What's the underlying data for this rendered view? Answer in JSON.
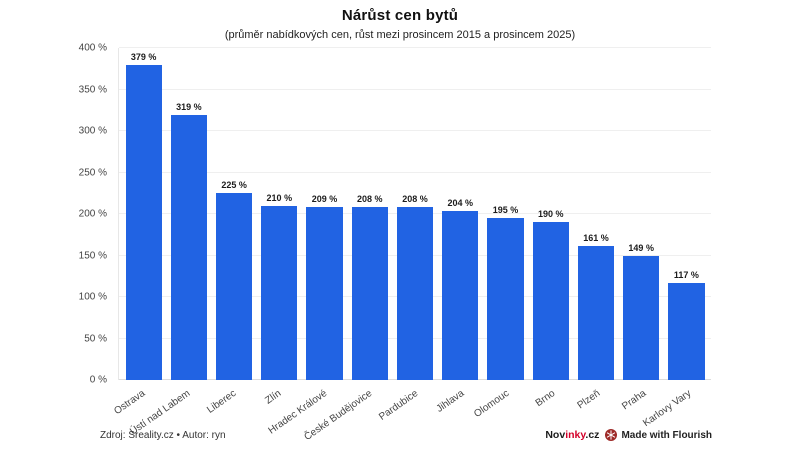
{
  "header": {
    "title": "Nárůst cen bytů",
    "subtitle": "(průměr nabídkových cen, růst mezi prosincem 2015 a prosincem 2025)"
  },
  "chart_data": {
    "type": "bar",
    "title": "Nárůst cen bytů",
    "subtitle": "(průměr nabídkových cen, růst mezi prosincem 2015 a prosincem 2025)",
    "categories": [
      "Ostrava",
      "Ústí nad Labem",
      "Liberec",
      "Zlín",
      "Hradec Králové",
      "České Budějovice",
      "Pardubice",
      "Jihlava",
      "Olomouc",
      "Brno",
      "Plzeň",
      "Praha",
      "Karlovy Vary"
    ],
    "values": [
      379,
      319,
      225,
      210,
      209,
      208,
      208,
      204,
      195,
      190,
      161,
      149,
      117
    ],
    "value_suffix": " %",
    "xlabel": "",
    "ylabel": "",
    "ylim": [
      0,
      400
    ],
    "ytick_step": 50,
    "grid": "horizontal",
    "legend": "none",
    "bar_color": "#2163e3",
    "label_rotation": -35
  },
  "footer": {
    "source": "Zdroj: Sreality.cz • Autor: ryn",
    "brand": {
      "prefix": "Nov",
      "highlight": "inky",
      "suffix": ".cz",
      "highlight_color": "#d40029"
    },
    "flourish_label": "Made with Flourish",
    "flourish_icon_color": "#9e2a28"
  }
}
